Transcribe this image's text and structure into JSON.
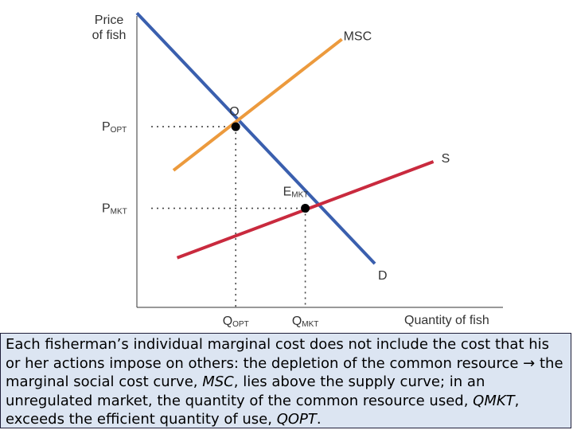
{
  "chart_data": {
    "type": "line",
    "title": "",
    "xlabel": "Quantity of fish",
    "ylabel": [
      "Price",
      "of fish"
    ],
    "xlim": [
      0,
      10
    ],
    "ylim": [
      0,
      10
    ],
    "grid": false,
    "series": [
      {
        "name": "D",
        "color": "#3a5fae",
        "x": [
          0,
          6.5
        ],
        "y": [
          10.1,
          1.5
        ]
      },
      {
        "name": "MSC",
        "color": "#ec9a3d",
        "x": [
          1.0,
          5.6
        ],
        "y": [
          4.7,
          9.2
        ]
      },
      {
        "name": "S",
        "color": "#c92a3e",
        "x": [
          1.1,
          8.1
        ],
        "y": [
          1.7,
          5.0
        ]
      }
    ],
    "points": [
      {
        "name": "O",
        "x": 2.7,
        "y": 6.2,
        "color": "#000000"
      },
      {
        "name": "EMKT",
        "x": 4.6,
        "y": 3.4,
        "color": "#000000"
      }
    ],
    "price_ticks": [
      {
        "main": "P",
        "sub": "OPT",
        "value": 6.2
      },
      {
        "main": "P",
        "sub": "MKT",
        "value": 3.4
      }
    ],
    "quantity_ticks": [
      {
        "main": "Q",
        "sub": "OPT",
        "value": 2.7
      },
      {
        "main": "Q",
        "sub": "MKT",
        "value": 4.6
      }
    ],
    "annotations": [
      {
        "main": "O",
        "sub": ""
      },
      {
        "main": "E",
        "sub": "MKT"
      }
    ],
    "line_labels": [
      "MSC",
      "S",
      "D"
    ]
  },
  "caption": {
    "p1": "Each fisherman’s individual marginal cost does not include the cost that his or her actions impose on others: the depletion of the common resource ",
    "arrow": "→",
    "p2": " the marginal social cost curve, ",
    "msc": "MSC",
    "p3": ", lies above the supply curve; in an unregulated market, the quantity of the common resource used, ",
    "qmkt": "QMKT",
    "p4": ", exceeds the efficient quantity of use, ",
    "qopt": "QOPT",
    "p5": "."
  }
}
